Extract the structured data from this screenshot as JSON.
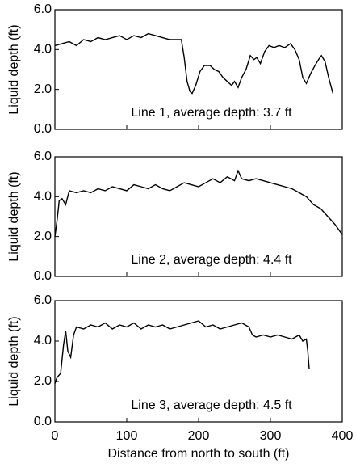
{
  "chart_data": [
    {
      "type": "line",
      "ylabel": "Liquid depth (ft)",
      "annotation": "Line 1, average depth: 3.7 ft",
      "xlim": [
        0,
        400
      ],
      "ylim": [
        0,
        6
      ],
      "yticks": [
        {
          "value": 0,
          "label": "0.0"
        },
        {
          "value": 2,
          "label": "2.0"
        },
        {
          "value": 4,
          "label": "4.0"
        },
        {
          "value": 6,
          "label": "6.0"
        }
      ],
      "series": [
        {
          "color": "#000000",
          "x": [
            0,
            10,
            20,
            30,
            40,
            50,
            60,
            70,
            80,
            90,
            100,
            110,
            120,
            130,
            140,
            150,
            160,
            170,
            176,
            180,
            184,
            188,
            191,
            196,
            202,
            208,
            216,
            222,
            228,
            234,
            240,
            246,
            250,
            255,
            260,
            266,
            272,
            277,
            281,
            286,
            292,
            298,
            305,
            312,
            320,
            328,
            334,
            340,
            345,
            350,
            356,
            362,
            367,
            371,
            376,
            381,
            387
          ],
          "values": [
            4.2,
            4.3,
            4.4,
            4.2,
            4.5,
            4.4,
            4.6,
            4.5,
            4.6,
            4.7,
            4.5,
            4.7,
            4.6,
            4.8,
            4.7,
            4.6,
            4.5,
            4.5,
            4.5,
            3.6,
            2.4,
            1.9,
            1.8,
            2.2,
            2.9,
            3.2,
            3.2,
            3.0,
            2.9,
            2.6,
            2.4,
            2.2,
            2.4,
            2.1,
            2.6,
            3.0,
            3.7,
            3.5,
            3.6,
            3.3,
            3.9,
            4.2,
            4.1,
            4.2,
            4.1,
            4.3,
            4.0,
            3.5,
            2.6,
            2.3,
            2.8,
            3.2,
            3.5,
            3.7,
            3.4,
            2.6,
            1.8
          ]
        }
      ]
    },
    {
      "type": "line",
      "ylabel": "Liquid depth (ft)",
      "annotation": "Line 2, average depth: 4.4 ft",
      "xlim": [
        0,
        400
      ],
      "ylim": [
        0,
        6
      ],
      "yticks": [
        {
          "value": 0,
          "label": "0.0"
        },
        {
          "value": 2,
          "label": "2.0"
        },
        {
          "value": 4,
          "label": "4.0"
        },
        {
          "value": 6,
          "label": "6.0"
        }
      ],
      "series": [
        {
          "color": "#000000",
          "x": [
            0,
            3,
            6,
            10,
            15,
            20,
            30,
            40,
            50,
            60,
            70,
            80,
            90,
            100,
            110,
            120,
            130,
            140,
            150,
            160,
            170,
            180,
            190,
            200,
            210,
            220,
            230,
            240,
            250,
            255,
            260,
            270,
            280,
            290,
            300,
            310,
            320,
            330,
            340,
            350,
            360,
            370,
            380,
            390,
            400
          ],
          "values": [
            2.0,
            2.8,
            3.8,
            3.9,
            3.6,
            4.3,
            4.2,
            4.3,
            4.2,
            4.4,
            4.3,
            4.5,
            4.4,
            4.3,
            4.6,
            4.5,
            4.4,
            4.6,
            4.4,
            4.3,
            4.5,
            4.7,
            4.6,
            4.5,
            4.7,
            4.9,
            4.7,
            5.0,
            4.8,
            5.3,
            4.9,
            4.8,
            4.9,
            4.8,
            4.7,
            4.6,
            4.5,
            4.4,
            4.2,
            4.0,
            3.6,
            3.4,
            3.0,
            2.6,
            2.1
          ]
        }
      ]
    },
    {
      "type": "line",
      "ylabel": "Liquid depth (ft)",
      "annotation": "Line 3, average depth: 4.5 ft",
      "xlabel": "Distance from north to south (ft)",
      "xlim": [
        0,
        400
      ],
      "ylim": [
        0,
        6
      ],
      "xticks": [
        0,
        100,
        200,
        300,
        400
      ],
      "yticks": [
        {
          "value": 0,
          "label": "0.0"
        },
        {
          "value": 2,
          "label": "2.0"
        },
        {
          "value": 4,
          "label": "4.0"
        },
        {
          "value": 6,
          "label": "6.0"
        }
      ],
      "series": [
        {
          "color": "#000000",
          "x": [
            0,
            3,
            8,
            12,
            15,
            18,
            22,
            26,
            30,
            40,
            50,
            60,
            70,
            80,
            90,
            100,
            110,
            120,
            130,
            140,
            150,
            160,
            170,
            180,
            190,
            200,
            210,
            220,
            230,
            240,
            250,
            260,
            270,
            275,
            280,
            290,
            300,
            310,
            320,
            330,
            340,
            345,
            350,
            352,
            354
          ],
          "values": [
            1.9,
            2.2,
            2.4,
            3.8,
            4.5,
            3.5,
            3.2,
            4.3,
            4.7,
            4.6,
            4.8,
            4.7,
            4.9,
            4.6,
            4.8,
            4.7,
            4.9,
            4.6,
            4.8,
            4.7,
            4.8,
            4.6,
            4.7,
            4.8,
            4.9,
            5.0,
            4.7,
            4.8,
            4.6,
            4.7,
            4.8,
            4.9,
            4.7,
            4.3,
            4.2,
            4.3,
            4.2,
            4.3,
            4.2,
            4.1,
            4.3,
            4.0,
            4.1,
            3.5,
            2.6
          ]
        }
      ]
    }
  ]
}
